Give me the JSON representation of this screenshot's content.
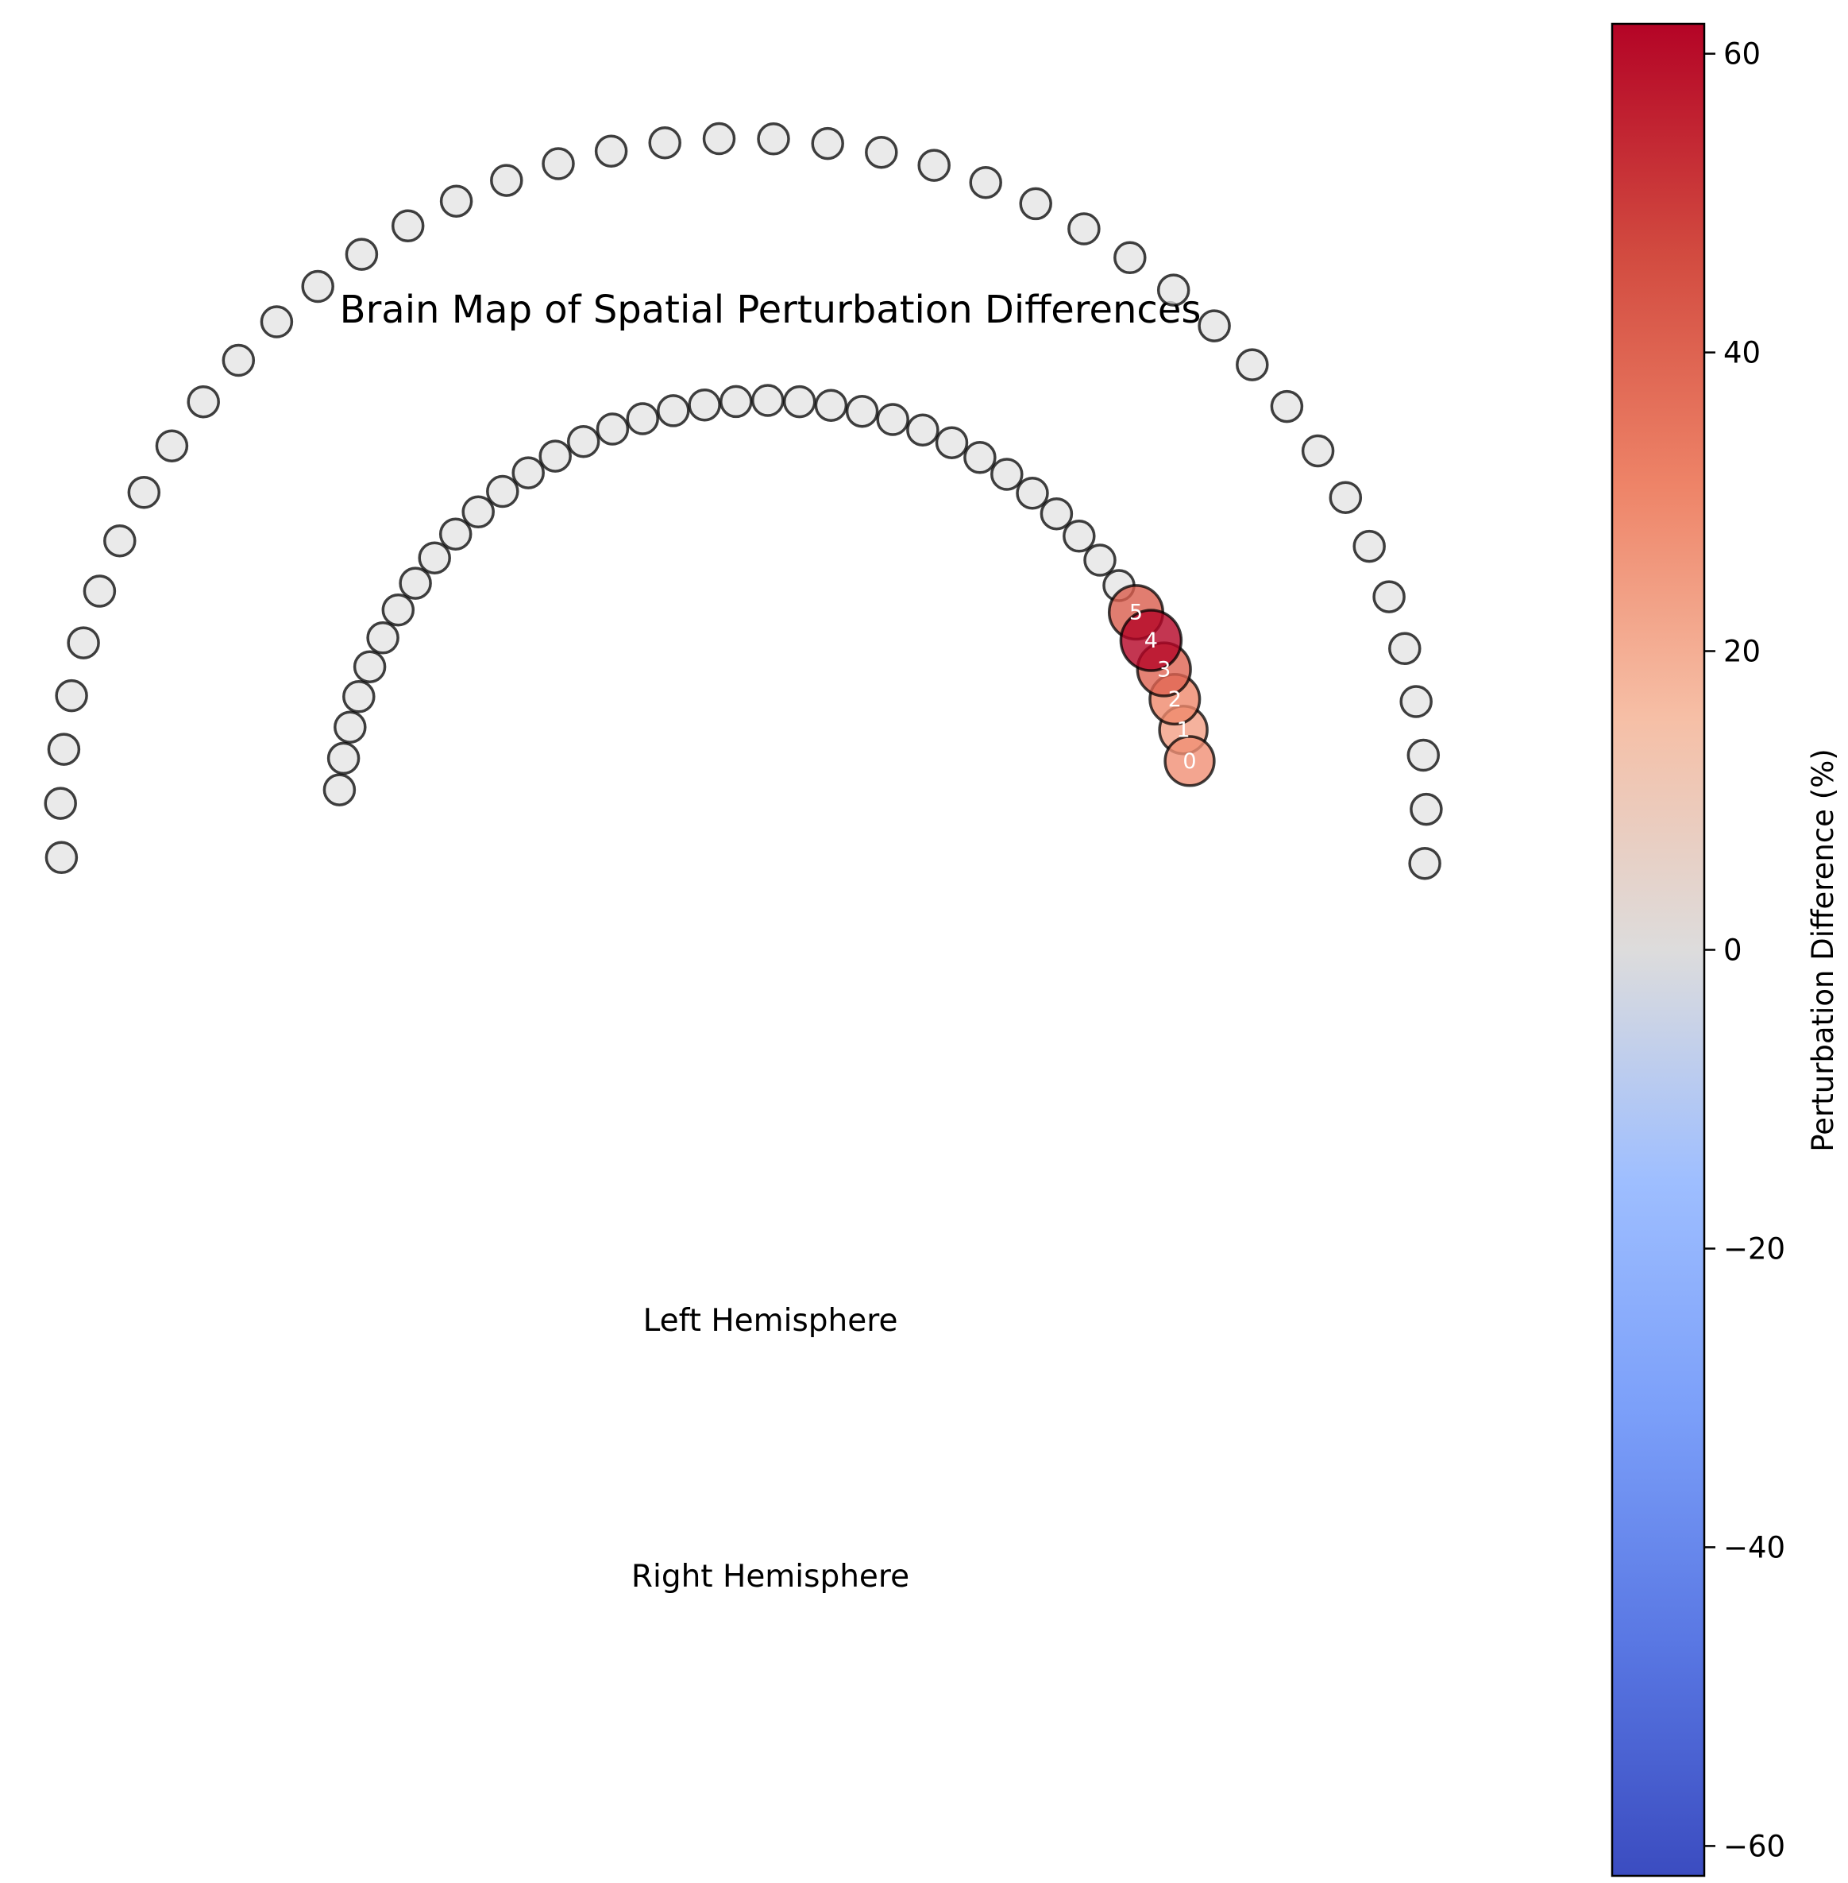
{
  "chart_data": {
    "type": "scatter",
    "title": "Brain Map of Spatial Perturbation Differences",
    "annotations": [
      "Left Hemisphere",
      "Right Hemisphere"
    ],
    "neutral_color": "#e5e5e5",
    "highlighted_channels": [
      {
        "label": "0",
        "value": 28
      },
      {
        "label": "1",
        "value": 24
      },
      {
        "label": "2",
        "value": 30
      },
      {
        "label": "3",
        "value": 40
      },
      {
        "label": "4",
        "value": 62
      },
      {
        "label": "5",
        "value": 42
      }
    ],
    "other_channels_value": 0,
    "upper_arc_channel_count": 34,
    "lower_arc_channel_count": 42,
    "colorbar": {
      "label": "Perturbation Difference (%)",
      "colormap": "coolwarm",
      "range": [
        -62,
        62
      ],
      "ticks": [
        60,
        40,
        20,
        0,
        -20,
        -40,
        -60
      ],
      "tick_labels": [
        "60",
        "40",
        "20",
        "0",
        "−20",
        "−40",
        "−60"
      ]
    }
  }
}
